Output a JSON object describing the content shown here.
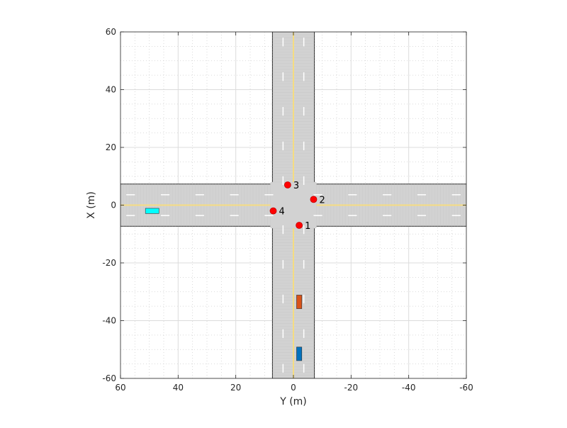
{
  "chart_data": {
    "type": "scatter",
    "xlabel": "Y (m)",
    "ylabel": "X (m)",
    "xlim": [
      60,
      -60
    ],
    "ylim": [
      -60,
      60
    ],
    "x_reversed": true,
    "x_ticks": [
      60,
      40,
      20,
      0,
      -20,
      -40,
      -60
    ],
    "x_tick_labels": [
      "60",
      "40",
      "20",
      "0",
      "-20",
      "-40",
      "-60"
    ],
    "y_ticks": [
      60,
      40,
      20,
      0,
      -20,
      -40,
      -60
    ],
    "y_tick_labels": [
      "60",
      "40",
      "20",
      "0",
      "-20",
      "-40",
      "-60"
    ],
    "major_grid": true,
    "minor_grid": true,
    "roads": {
      "horizontal": {
        "x_from": -7.3,
        "x_to": 7.3,
        "y_from": 60,
        "y_to": -60,
        "center": 0
      },
      "vertical": {
        "y_from": -7.3,
        "y_to": 7.3,
        "x_from": -60,
        "x_to": 60,
        "center": 0
      },
      "intersection_half_width": 8
    },
    "waypoints": [
      {
        "label": "1",
        "y": -2,
        "x": -7,
        "color": "#ff0000"
      },
      {
        "label": "2",
        "y": -7,
        "x": 2,
        "color": "#ff0000"
      },
      {
        "label": "3",
        "y": 2,
        "x": 7,
        "color": "#ff0000"
      },
      {
        "label": "4",
        "y": 7,
        "x": -2,
        "color": "#ff0000"
      }
    ],
    "vehicles": [
      {
        "name": "ego",
        "y": -2,
        "x": -51.5,
        "length": 4.7,
        "width": 1.8,
        "color": "#0072bd"
      },
      {
        "name": "car",
        "y": -2,
        "x": -33.5,
        "length": 4.7,
        "width": 1.8,
        "color": "#d95319"
      },
      {
        "name": "car",
        "y": 49,
        "x": -2,
        "length": 4.7,
        "width": 1.8,
        "color": "#00ffff"
      }
    ]
  },
  "colors": {
    "road": "#d2d2d2",
    "center_line": "#f5dc82",
    "lane_dash": "#ffffff",
    "grid_major": "#dcdcdc",
    "grid_minor": "#cfcfcf",
    "axis": "#262626"
  }
}
